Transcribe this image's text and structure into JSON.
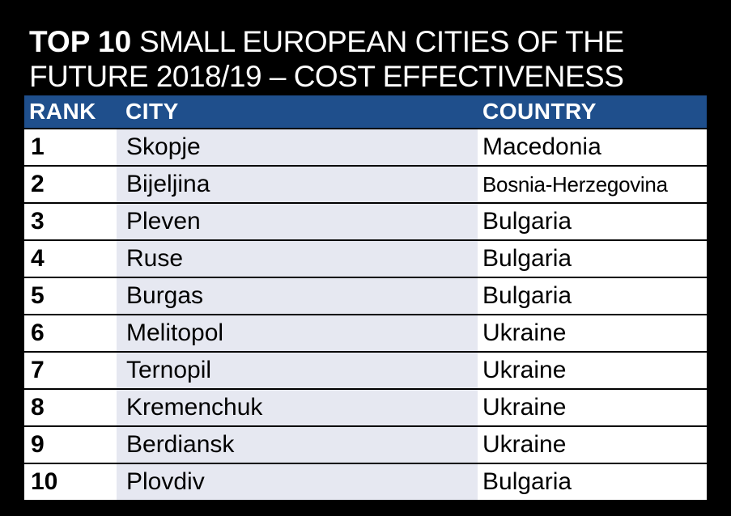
{
  "title": {
    "bold": "TOP 10",
    "rest": "SMALL EUROPEAN CITIES OF THE FUTURE 2018/19 – COST EFFECTIVENESS"
  },
  "table": {
    "headers": {
      "rank": "RANK",
      "city": "CITY",
      "country": "COUNTRY"
    },
    "rows": [
      {
        "rank": "1",
        "city": "Skopje",
        "country": "Macedonia"
      },
      {
        "rank": "2",
        "city": "Bijeljina",
        "country": "Bosnia-Herzegovina"
      },
      {
        "rank": "3",
        "city": "Pleven",
        "country": "Bulgaria"
      },
      {
        "rank": "4",
        "city": "Ruse",
        "country": "Bulgaria"
      },
      {
        "rank": "5",
        "city": "Burgas",
        "country": "Bulgaria"
      },
      {
        "rank": "6",
        "city": "Melitopol",
        "country": "Ukraine"
      },
      {
        "rank": "7",
        "city": "Ternopil",
        "country": "Ukraine"
      },
      {
        "rank": "8",
        "city": "Kremenchuk",
        "country": "Ukraine"
      },
      {
        "rank": "9",
        "city": "Berdiansk",
        "country": "Ukraine"
      },
      {
        "rank": "10",
        "city": "Plovdiv",
        "country": "Bulgaria"
      }
    ]
  },
  "colors": {
    "background": "#000000",
    "header": "#1f4f8c",
    "city_column": "#e6e8f1",
    "cell": "#ffffff"
  }
}
